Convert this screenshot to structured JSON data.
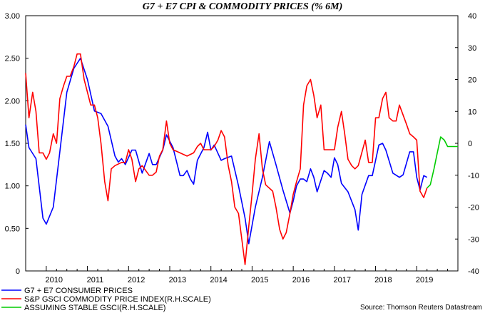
{
  "chart_data": {
    "type": "line",
    "title": "G7 + E7 CPI & COMMODITY PRICES (% 6M)",
    "x_ticks": [
      "2010",
      "2011",
      "2012",
      "2013",
      "2014",
      "2015",
      "2016",
      "2017",
      "2018",
      "2019"
    ],
    "y_left_ticks": [
      "3.00",
      "2.50",
      "2.00",
      "1.50",
      "1.00",
      "0.50",
      "0"
    ],
    "y_right_ticks": [
      "40",
      "30",
      "20",
      "10",
      "0",
      "-10",
      "-20",
      "-30",
      "-40"
    ],
    "y_left_range": [
      0,
      3.0
    ],
    "y_right_range": [
      -40,
      40
    ],
    "x_range": [
      2009.5,
      2020.0
    ],
    "source": "Source: Thomson Reuters Datastream",
    "series": [
      {
        "name": "G7 + E7 CONSUMER PRICES",
        "axis": "left",
        "color": "#0000ff",
        "points": [
          [
            2009.5,
            1.72
          ],
          [
            2009.58,
            1.45
          ],
          [
            2009.75,
            1.32
          ],
          [
            2009.92,
            0.62
          ],
          [
            2010.0,
            0.55
          ],
          [
            2010.17,
            0.75
          ],
          [
            2010.33,
            1.4
          ],
          [
            2010.5,
            2.1
          ],
          [
            2010.67,
            2.38
          ],
          [
            2010.83,
            2.5
          ],
          [
            2011.0,
            2.25
          ],
          [
            2011.17,
            1.88
          ],
          [
            2011.33,
            1.85
          ],
          [
            2011.5,
            1.7
          ],
          [
            2011.67,
            1.35
          ],
          [
            2011.75,
            1.28
          ],
          [
            2011.83,
            1.32
          ],
          [
            2011.92,
            1.25
          ],
          [
            2012.08,
            1.42
          ],
          [
            2012.17,
            1.42
          ],
          [
            2012.33,
            1.15
          ],
          [
            2012.5,
            1.38
          ],
          [
            2012.58,
            1.25
          ],
          [
            2012.67,
            1.25
          ],
          [
            2012.83,
            1.42
          ],
          [
            2012.92,
            1.6
          ],
          [
            2013.08,
            1.45
          ],
          [
            2013.25,
            1.12
          ],
          [
            2013.33,
            1.12
          ],
          [
            2013.42,
            1.18
          ],
          [
            2013.5,
            1.08
          ],
          [
            2013.58,
            1.02
          ],
          [
            2013.67,
            1.3
          ],
          [
            2013.83,
            1.45
          ],
          [
            2013.92,
            1.63
          ],
          [
            2014.0,
            1.42
          ],
          [
            2014.08,
            1.48
          ],
          [
            2014.25,
            1.3
          ],
          [
            2014.33,
            1.32
          ],
          [
            2014.5,
            1.35
          ],
          [
            2014.67,
            1.0
          ],
          [
            2014.83,
            0.62
          ],
          [
            2014.92,
            0.32
          ],
          [
            2015.08,
            0.75
          ],
          [
            2015.25,
            1.1
          ],
          [
            2015.42,
            1.52
          ],
          [
            2015.58,
            1.25
          ],
          [
            2015.75,
            0.95
          ],
          [
            2015.92,
            0.68
          ],
          [
            2016.0,
            0.82
          ],
          [
            2016.08,
            1.0
          ],
          [
            2016.17,
            1.08
          ],
          [
            2016.25,
            1.08
          ],
          [
            2016.33,
            1.05
          ],
          [
            2016.42,
            1.2
          ],
          [
            2016.5,
            1.1
          ],
          [
            2016.58,
            0.93
          ],
          [
            2016.75,
            1.18
          ],
          [
            2016.83,
            1.15
          ],
          [
            2016.92,
            1.1
          ],
          [
            2017.0,
            1.33
          ],
          [
            2017.08,
            1.25
          ],
          [
            2017.17,
            1.03
          ],
          [
            2017.33,
            0.93
          ],
          [
            2017.5,
            0.72
          ],
          [
            2017.58,
            0.48
          ],
          [
            2017.67,
            0.9
          ],
          [
            2017.83,
            1.12
          ],
          [
            2017.92,
            1.12
          ],
          [
            2018.08,
            1.48
          ],
          [
            2018.17,
            1.5
          ],
          [
            2018.25,
            1.42
          ],
          [
            2018.42,
            1.15
          ],
          [
            2018.58,
            1.1
          ],
          [
            2018.67,
            1.13
          ],
          [
            2018.83,
            1.4
          ],
          [
            2018.92,
            1.4
          ],
          [
            2019.0,
            1.1
          ],
          [
            2019.08,
            0.95
          ],
          [
            2019.17,
            1.12
          ],
          [
            2019.25,
            1.1
          ]
        ]
      },
      {
        "name": "S&P GSCI COMMODITY PRICE INDEX(R.H.SCALE)",
        "axis": "right",
        "color": "#ff0000",
        "points": [
          [
            2009.5,
            22
          ],
          [
            2009.58,
            8
          ],
          [
            2009.67,
            16
          ],
          [
            2009.75,
            10
          ],
          [
            2009.83,
            -3
          ],
          [
            2009.92,
            -3
          ],
          [
            2010.0,
            -5
          ],
          [
            2010.08,
            -3
          ],
          [
            2010.17,
            3
          ],
          [
            2010.25,
            0
          ],
          [
            2010.33,
            14
          ],
          [
            2010.42,
            18
          ],
          [
            2010.5,
            21
          ],
          [
            2010.58,
            21
          ],
          [
            2010.67,
            24
          ],
          [
            2010.75,
            28
          ],
          [
            2010.83,
            28
          ],
          [
            2010.92,
            20
          ],
          [
            2011.0,
            16
          ],
          [
            2011.08,
            12
          ],
          [
            2011.17,
            12
          ],
          [
            2011.25,
            8
          ],
          [
            2011.33,
            0
          ],
          [
            2011.42,
            -12
          ],
          [
            2011.5,
            -18
          ],
          [
            2011.58,
            -8
          ],
          [
            2011.67,
            -7
          ],
          [
            2011.83,
            -6
          ],
          [
            2011.92,
            -6
          ],
          [
            2012.0,
            -2
          ],
          [
            2012.08,
            -5
          ],
          [
            2012.17,
            -12
          ],
          [
            2012.25,
            -8
          ],
          [
            2012.33,
            -7
          ],
          [
            2012.5,
            -10
          ],
          [
            2012.58,
            -10
          ],
          [
            2012.67,
            -9
          ],
          [
            2012.75,
            -4
          ],
          [
            2012.83,
            -2
          ],
          [
            2012.92,
            7
          ],
          [
            2013.0,
            0
          ],
          [
            2013.08,
            -2
          ],
          [
            2013.25,
            -3
          ],
          [
            2013.42,
            -4
          ],
          [
            2013.58,
            -3
          ],
          [
            2013.67,
            -1
          ],
          [
            2013.75,
            0
          ],
          [
            2013.83,
            -2
          ],
          [
            2013.92,
            -2
          ],
          [
            2014.0,
            -2
          ],
          [
            2014.08,
            -1
          ],
          [
            2014.17,
            1
          ],
          [
            2014.25,
            4
          ],
          [
            2014.33,
            2
          ],
          [
            2014.42,
            -7
          ],
          [
            2014.5,
            -12
          ],
          [
            2014.58,
            -20
          ],
          [
            2014.67,
            -22
          ],
          [
            2014.75,
            -30
          ],
          [
            2014.83,
            -38
          ],
          [
            2014.92,
            -26
          ],
          [
            2015.0,
            -16
          ],
          [
            2015.08,
            -5
          ],
          [
            2015.17,
            3
          ],
          [
            2015.25,
            -8
          ],
          [
            2015.33,
            -13
          ],
          [
            2015.5,
            -15
          ],
          [
            2015.58,
            -20
          ],
          [
            2015.67,
            -27
          ],
          [
            2015.75,
            -30
          ],
          [
            2015.83,
            -28
          ],
          [
            2015.92,
            -22
          ],
          [
            2016.0,
            -16
          ],
          [
            2016.08,
            -12
          ],
          [
            2016.17,
            -8
          ],
          [
            2016.25,
            12
          ],
          [
            2016.33,
            18
          ],
          [
            2016.42,
            20
          ],
          [
            2016.5,
            15
          ],
          [
            2016.58,
            8
          ],
          [
            2016.67,
            12
          ],
          [
            2016.75,
            -2
          ],
          [
            2016.92,
            -2
          ],
          [
            2017.0,
            -2
          ],
          [
            2017.08,
            5
          ],
          [
            2017.17,
            10
          ],
          [
            2017.25,
            3
          ],
          [
            2017.33,
            -5
          ],
          [
            2017.42,
            -7
          ],
          [
            2017.5,
            -8
          ],
          [
            2017.58,
            -7
          ],
          [
            2017.75,
            1
          ],
          [
            2017.83,
            -6
          ],
          [
            2017.92,
            -6
          ],
          [
            2018.0,
            8
          ],
          [
            2018.08,
            8
          ],
          [
            2018.17,
            14
          ],
          [
            2018.25,
            16
          ],
          [
            2018.33,
            8
          ],
          [
            2018.42,
            7
          ],
          [
            2018.5,
            7
          ],
          [
            2018.58,
            12
          ],
          [
            2018.75,
            6
          ],
          [
            2018.83,
            3
          ],
          [
            2018.92,
            2
          ],
          [
            2019.0,
            1
          ],
          [
            2019.08,
            -15
          ],
          [
            2019.17,
            -17
          ],
          [
            2019.25,
            -14
          ]
        ]
      },
      {
        "name": "ASSUMING STABLE GSCI(R.H.SCALE)",
        "axis": "right",
        "color": "#00cc00",
        "points": [
          [
            2019.25,
            -14
          ],
          [
            2019.33,
            -13
          ],
          [
            2019.42,
            -8
          ],
          [
            2019.5,
            -3
          ],
          [
            2019.58,
            2
          ],
          [
            2019.67,
            1
          ],
          [
            2019.75,
            -1
          ],
          [
            2019.83,
            -1
          ],
          [
            2019.92,
            -1
          ],
          [
            2020.0,
            -1
          ]
        ]
      }
    ]
  }
}
